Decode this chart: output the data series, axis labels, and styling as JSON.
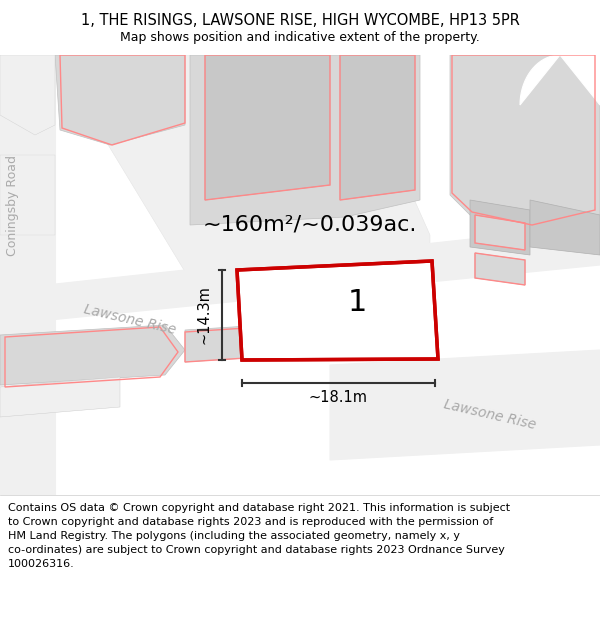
{
  "title_line1": "1, THE RISINGS, LAWSONE RISE, HIGH WYCOMBE, HP13 5PR",
  "title_line2": "Map shows position and indicative extent of the property.",
  "footer_line1": "Contains OS data © Crown copyright and database right 2021. This information is subject to Crown copyright and database rights 2023 and is reproduced with the permission of",
  "footer_line2": "HM Land Registry. The polygons (including the associated geometry, namely x, y co-ordinates) are subject to Crown copyright and database rights 2023 Ordnance Survey",
  "footer_line3": "100026316.",
  "area_label": "~160m²/~0.039ac.",
  "plot_number": "1",
  "width_label": "~18.1m",
  "height_label": "~14.3m",
  "road_label_left": "Coningsby Road",
  "road_label_mid": "Lawsone Rise",
  "road_label_right": "Lawsone Rise",
  "plot_color": "#cc0000",
  "pink_color": "#ff8888",
  "building_gray": "#d0d0d0",
  "road_gray": "#e8e8e8",
  "bg_white": "#ffffff",
  "dim_line_color": "#333333",
  "road_text_color": "#aaaaaa",
  "gray_light": "#f0f0f0",
  "gray_medium": "#d8d8d8",
  "gray_dark": "#c8c8c8"
}
